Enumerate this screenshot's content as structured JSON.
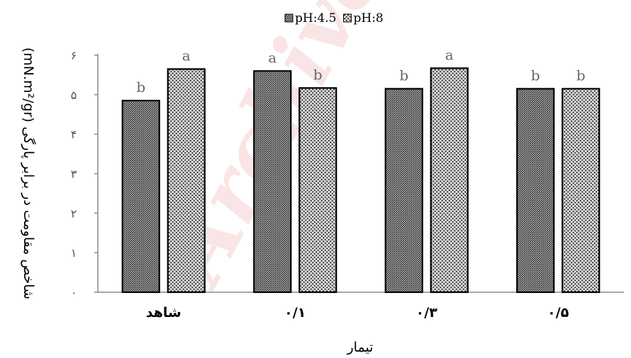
{
  "watermark": "Archive",
  "chart_data": {
    "type": "bar",
    "categories": [
      "شاهد",
      "۰/۱",
      "۰/۳",
      "۰/۵"
    ],
    "series": [
      {
        "name": "pH:4.5",
        "values": [
          4.85,
          5.6,
          5.15,
          5.15
        ],
        "letters": [
          "b",
          "a",
          "b",
          "b"
        ],
        "pattern": "diagonal-hatch"
      },
      {
        "name": "pH:8",
        "values": [
          5.65,
          5.17,
          5.67,
          5.15
        ],
        "letters": [
          "a",
          "b",
          "a",
          "b"
        ],
        "pattern": "dotted"
      }
    ],
    "xlabel": "تیمار",
    "ylabel": "شاخص مقاومت در برابر پارگی (mN.m²/gr)",
    "ylim": [
      0,
      6
    ],
    "yticks": [
      0,
      1,
      2,
      3,
      4,
      5,
      6
    ],
    "ytick_labels": [
      "۰",
      "۱",
      "۲",
      "۳",
      "۴",
      "۵",
      "۶"
    ],
    "grid": false,
    "legend_position": "top-center"
  }
}
